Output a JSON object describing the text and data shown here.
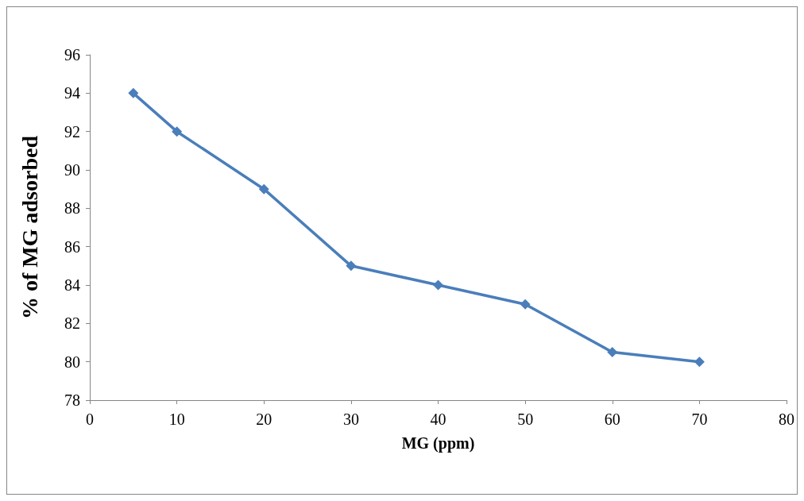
{
  "chart_data": {
    "type": "line",
    "xlabel": "MG (ppm)",
    "ylabel": "% of MG adsorbed",
    "x": [
      5,
      10,
      20,
      30,
      40,
      50,
      60,
      70
    ],
    "series": [
      {
        "color": "#4a7ebb",
        "values": [
          94,
          92,
          89,
          85,
          84,
          83,
          80.5,
          80
        ]
      }
    ],
    "xlim": [
      0,
      80
    ],
    "xticks": [
      0,
      10,
      20,
      30,
      40,
      50,
      60,
      70,
      80
    ],
    "ylim": [
      78,
      96
    ],
    "yticks": [
      78,
      80,
      82,
      84,
      86,
      88,
      90,
      92,
      94,
      96
    ],
    "grid": false,
    "marker": "diamond",
    "line_style": "solid"
  }
}
